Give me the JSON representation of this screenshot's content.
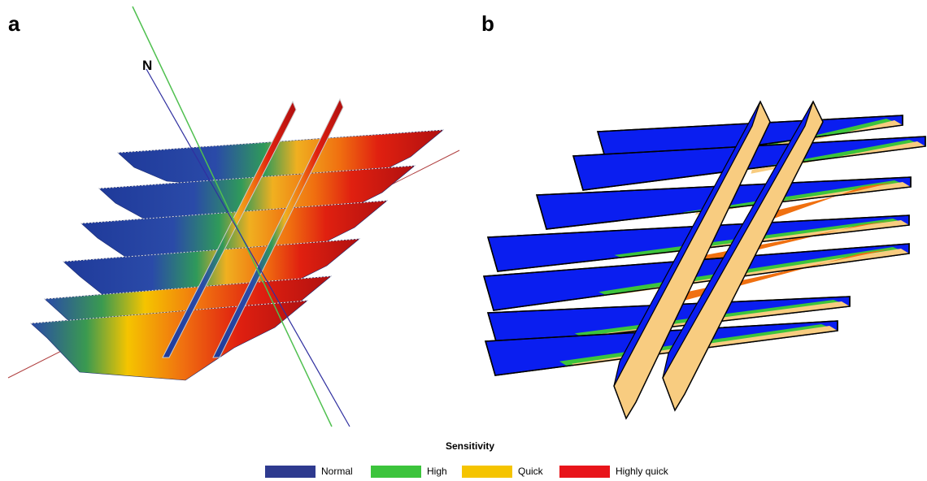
{
  "panels": {
    "a": {
      "label": "a",
      "north_label": "N"
    },
    "b": {
      "label": "b"
    }
  },
  "legend": {
    "title": "Sensitivity",
    "items": [
      {
        "name": "Normal",
        "color": "#2e3a8f"
      },
      {
        "name": "High",
        "color": "#3cc43c"
      },
      {
        "name": "Quick",
        "color": "#f5c400"
      },
      {
        "name": "Highly quick",
        "color": "#e8141a"
      }
    ]
  }
}
